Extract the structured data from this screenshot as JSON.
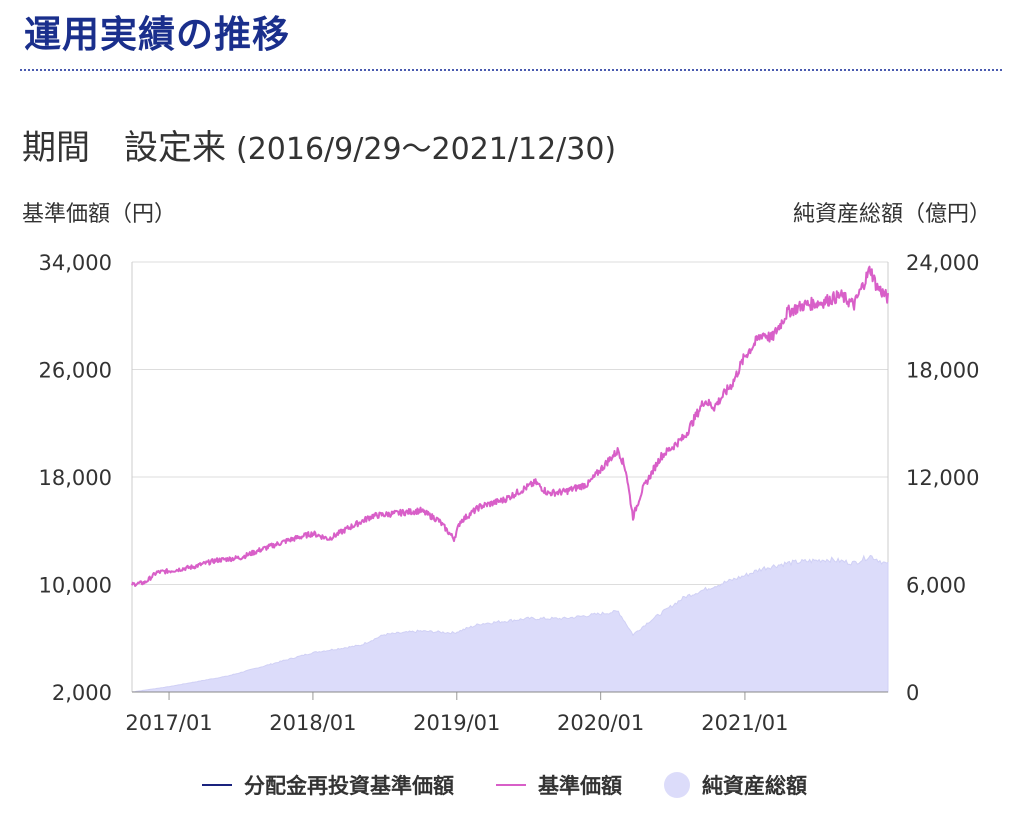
{
  "page": {
    "title": "運用実績の推移",
    "period_label": "期間　設定来",
    "period_range": "(2016/9/29～2021/12/30)",
    "left_axis_label": "基準価額（円）",
    "right_axis_label": "純資産総額（億円）"
  },
  "colors": {
    "title": "#1a2f8c",
    "reinvested_nav": "#1a237e",
    "nav": "#d85fc8",
    "net_assets": "#dcdcfa"
  },
  "legend": [
    {
      "label": "分配金再投資基準価額",
      "color": "#1a237e",
      "shape": "line"
    },
    {
      "label": "基準価額",
      "color": "#d85fc8",
      "shape": "line"
    },
    {
      "label": "純資産総額",
      "color": "#dcdcfa",
      "shape": "circle"
    }
  ],
  "chart_data": {
    "type": "line",
    "x_range": [
      "2016-09-29",
      "2021-12-30"
    ],
    "x_ticks": [
      "2017/01",
      "2018/01",
      "2019/01",
      "2020/01",
      "2021/01"
    ],
    "left_axis": {
      "label": "基準価額（円）",
      "ylim": [
        2000,
        34000
      ],
      "ticks": [
        "2,000",
        "10,000",
        "18,000",
        "26,000",
        "34,000"
      ],
      "tick_values": [
        2000,
        10000,
        18000,
        26000,
        34000
      ]
    },
    "right_axis": {
      "label": "純資産総額（億円）",
      "ylim": [
        0,
        24000
      ],
      "ticks": [
        "0",
        "6,000",
        "12,000",
        "18,000",
        "24,000"
      ],
      "tick_values": [
        0,
        6000,
        12000,
        18000,
        24000
      ]
    },
    "grid": true,
    "legend_position": "bottom",
    "series": [
      {
        "name": "基準価額",
        "type": "line",
        "axis": "left",
        "color": "#d85fc8",
        "points": [
          [
            "2016-09-29",
            10000
          ],
          [
            "2016-11-01",
            10150
          ],
          [
            "2016-12-01",
            10900
          ],
          [
            "2017-01-01",
            11000
          ],
          [
            "2017-03-01",
            11300
          ],
          [
            "2017-05-01",
            11800
          ],
          [
            "2017-07-01",
            12000
          ],
          [
            "2017-09-01",
            12700
          ],
          [
            "2017-11-01",
            13300
          ],
          [
            "2018-01-01",
            13800
          ],
          [
            "2018-02-10",
            13400
          ],
          [
            "2018-04-01",
            14200
          ],
          [
            "2018-06-01",
            15100
          ],
          [
            "2018-08-01",
            15300
          ],
          [
            "2018-10-01",
            15500
          ],
          [
            "2018-11-15",
            14800
          ],
          [
            "2018-12-25",
            13400
          ],
          [
            "2019-01-10",
            14700
          ],
          [
            "2019-03-01",
            15800
          ],
          [
            "2019-05-01",
            16300
          ],
          [
            "2019-06-01",
            16800
          ],
          [
            "2019-07-20",
            17600
          ],
          [
            "2019-08-20",
            16800
          ],
          [
            "2019-10-01",
            16900
          ],
          [
            "2019-12-01",
            17500
          ],
          [
            "2020-01-20",
            19200
          ],
          [
            "2020-02-15",
            20000
          ],
          [
            "2020-03-05",
            18500
          ],
          [
            "2020-03-23",
            15000
          ],
          [
            "2020-04-15",
            17000
          ],
          [
            "2020-06-01",
            19500
          ],
          [
            "2020-08-01",
            21000
          ],
          [
            "2020-09-20",
            23700
          ],
          [
            "2020-10-15",
            23200
          ],
          [
            "2020-12-01",
            25000
          ],
          [
            "2021-01-01",
            27000
          ],
          [
            "2021-02-15",
            28700
          ],
          [
            "2021-03-10",
            28300
          ],
          [
            "2021-04-20",
            30300
          ],
          [
            "2021-06-01",
            30800
          ],
          [
            "2021-07-15",
            31000
          ],
          [
            "2021-09-01",
            31500
          ],
          [
            "2021-10-05",
            30800
          ],
          [
            "2021-11-15",
            33500
          ],
          [
            "2021-12-01",
            32200
          ],
          [
            "2021-12-30",
            31300
          ]
        ]
      },
      {
        "name": "純資産総額",
        "type": "area",
        "axis": "right",
        "color": "#dcdcfa",
        "points": [
          [
            "2016-09-29",
            0
          ],
          [
            "2016-12-01",
            200
          ],
          [
            "2017-01-01",
            300
          ],
          [
            "2017-06-01",
            900
          ],
          [
            "2018-01-01",
            2200
          ],
          [
            "2018-05-01",
            2600
          ],
          [
            "2018-07-01",
            3200
          ],
          [
            "2018-10-01",
            3400
          ],
          [
            "2018-12-25",
            3300
          ],
          [
            "2019-03-01",
            3800
          ],
          [
            "2019-07-01",
            4100
          ],
          [
            "2019-10-01",
            4100
          ],
          [
            "2020-02-15",
            4500
          ],
          [
            "2020-03-23",
            3200
          ],
          [
            "2020-05-01",
            3900
          ],
          [
            "2020-08-01",
            5300
          ],
          [
            "2020-10-01",
            5800
          ],
          [
            "2021-01-01",
            6500
          ],
          [
            "2021-02-15",
            6900
          ],
          [
            "2021-04-20",
            7200
          ],
          [
            "2021-08-01",
            7400
          ],
          [
            "2021-10-05",
            7200
          ],
          [
            "2021-11-15",
            7600
          ],
          [
            "2021-12-30",
            7100
          ]
        ]
      }
    ]
  }
}
